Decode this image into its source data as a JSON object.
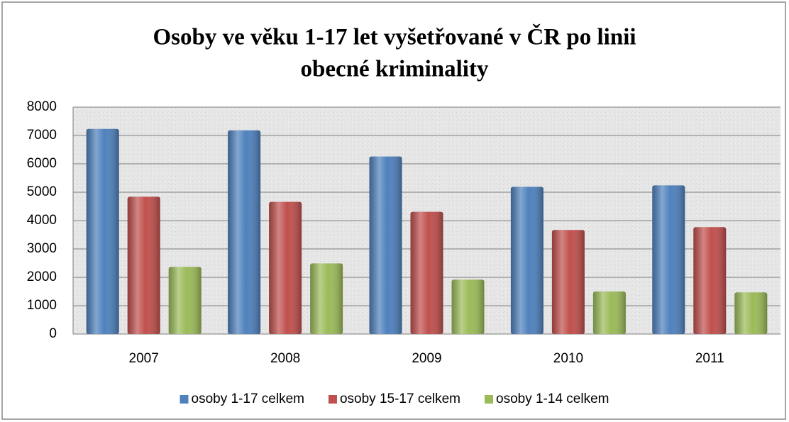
{
  "chart_data": {
    "type": "bar",
    "title": [
      "Osoby ve věku 1-17 let  vyšetřované v ČR po linii",
      "obecné kriminality"
    ],
    "categories": [
      "2007",
      "2008",
      "2009",
      "2010",
      "2011"
    ],
    "series": [
      {
        "name": "osoby 1-17 celkem",
        "color": "#4f81bd",
        "values": [
          7230,
          7180,
          6260,
          5190,
          5240
        ]
      },
      {
        "name": "osoby 15-17 celkem",
        "color": "#c0504d",
        "values": [
          4840,
          4660,
          4310,
          3670,
          3770
        ]
      },
      {
        "name": "osoby 1-14 celkem",
        "color": "#9bbb59",
        "values": [
          2370,
          2490,
          1920,
          1500,
          1470
        ]
      }
    ],
    "ylim": [
      0,
      8000
    ],
    "yticks": [
      0,
      1000,
      2000,
      3000,
      4000,
      5000,
      6000,
      7000,
      8000
    ],
    "grid": true,
    "legend": "bottom"
  }
}
